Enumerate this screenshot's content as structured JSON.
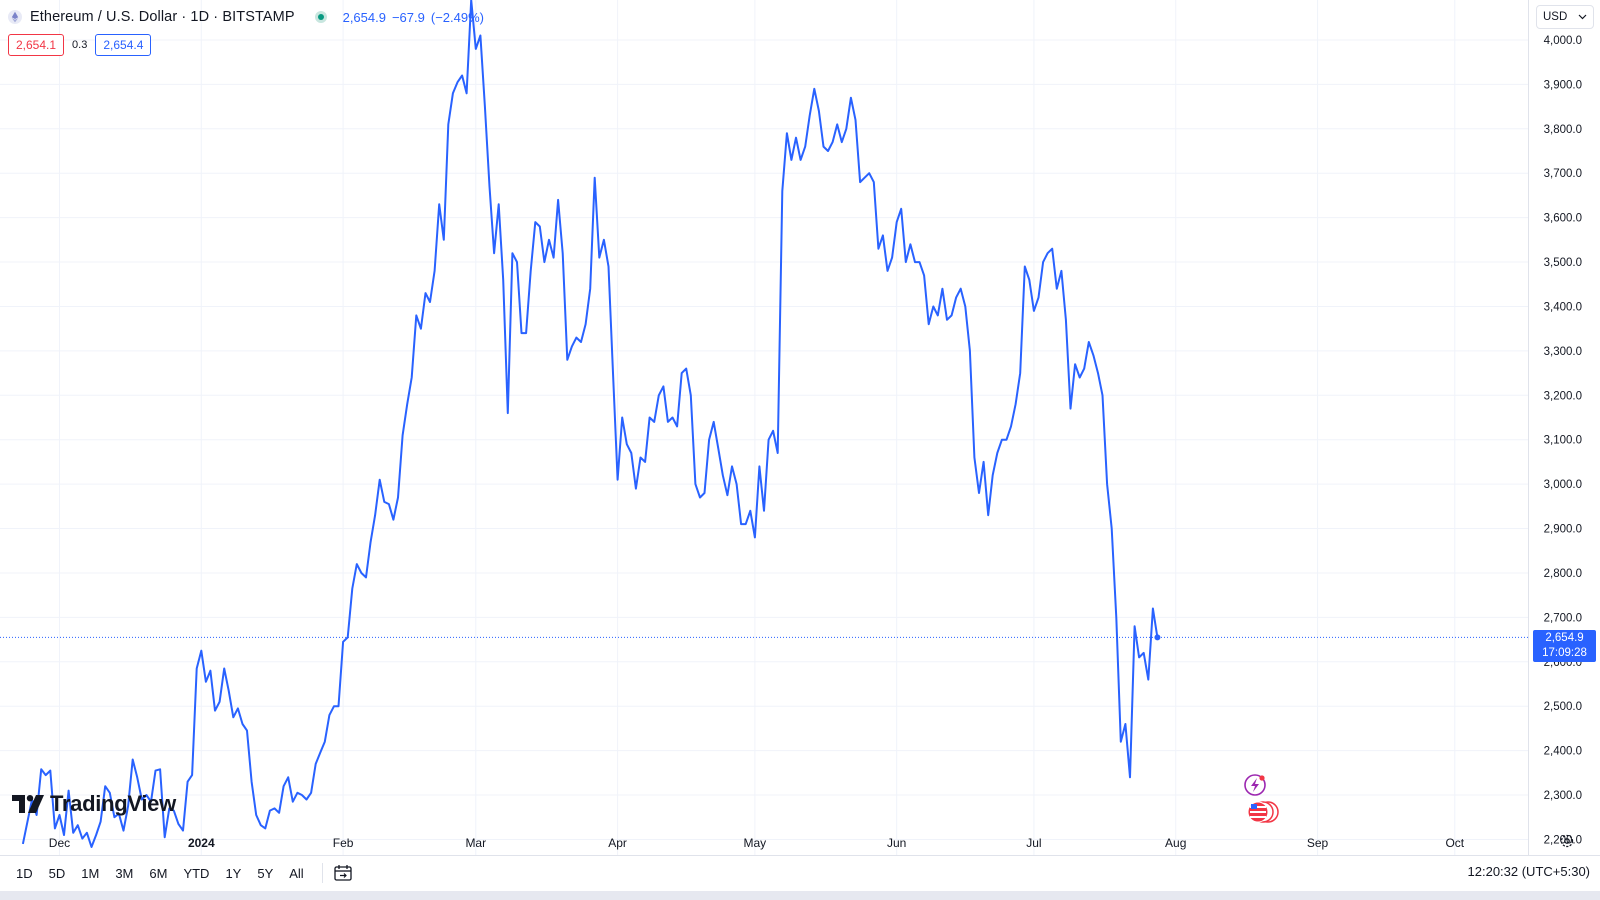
{
  "header": {
    "title": "Ethereum / U.S. Dollar · 1D · BITSTAMP",
    "last": "2,654.9",
    "change": "−67.9",
    "change_pct": "(−2.49%)",
    "bid": "2,654.1",
    "spread": "0.3",
    "ask": "2,654.4"
  },
  "currency_select": {
    "value": "USD"
  },
  "price_tag": {
    "price": "2,654.9",
    "countdown": "17:09:28"
  },
  "branding": {
    "logo_text": "TradingView"
  },
  "toolbar": {
    "ranges": [
      "1D",
      "5D",
      "1M",
      "3M",
      "6M",
      "YTD",
      "1Y",
      "5Y",
      "All"
    ],
    "clock": "12:20:32 (UTC+5:30)"
  },
  "colors": {
    "line": "#2962ff",
    "grid": "#f0f3fa",
    "down": "#f23645",
    "up": "#089981"
  },
  "icons": [
    "ethereum-icon",
    "market-open-icon",
    "calendar-range-icon",
    "settings-gear-icon",
    "flash-event-icon",
    "us-flag-events-icon",
    "tradingview-logo-icon",
    "chevron-down-icon"
  ],
  "chart_data": {
    "type": "line",
    "title": "Ethereum / U.S. Dollar · 1D · BITSTAMP",
    "xlabel": "",
    "ylabel": "",
    "ylim": [
      2165,
      4090
    ],
    "xlim": [
      "2023-11-18",
      "2024-10-17"
    ],
    "y_ticks": [
      2200,
      2300,
      2400,
      2500,
      2600,
      2700,
      2800,
      2900,
      3000,
      3100,
      3200,
      3300,
      3400,
      3500,
      3600,
      3700,
      3800,
      3900,
      4000
    ],
    "y_tick_labels": [
      "2,200.0",
      "2,300.0",
      "2,400.0",
      "2,500.0",
      "2,600.0",
      "2,700.0",
      "2,800.0",
      "2,900.0",
      "3,000.0",
      "3,100.0",
      "3,200.0",
      "3,300.0",
      "3,400.0",
      "3,500.0",
      "3,600.0",
      "3,700.0",
      "3,800.0",
      "3,900.0",
      "4,000.0"
    ],
    "x_ticks": [
      {
        "label": "Dec",
        "date": "2023-12-01"
      },
      {
        "label": "2024",
        "date": "2024-01-01"
      },
      {
        "label": "Feb",
        "date": "2024-02-01"
      },
      {
        "label": "Mar",
        "date": "2024-03-01"
      },
      {
        "label": "Apr",
        "date": "2024-04-01"
      },
      {
        "label": "May",
        "date": "2024-05-01"
      },
      {
        "label": "Jun",
        "date": "2024-06-01"
      },
      {
        "label": "Jul",
        "date": "2024-07-01"
      },
      {
        "label": "Aug",
        "date": "2024-08-01"
      },
      {
        "label": "Sep",
        "date": "2024-09-01"
      },
      {
        "label": "Oct",
        "date": "2024-10-01"
      }
    ],
    "last_price": 2654.9,
    "grid": true,
    "series": [
      {
        "values": [
          [
            "2023-11-23",
            2190
          ],
          [
            "2023-11-25",
            2290
          ],
          [
            "2023-11-26",
            2255
          ],
          [
            "2023-11-27",
            2358
          ],
          [
            "2023-11-28",
            2345
          ],
          [
            "2023-11-29",
            2355
          ],
          [
            "2023-11-30",
            2225
          ],
          [
            "2023-12-01",
            2255
          ],
          [
            "2023-12-02",
            2210
          ],
          [
            "2023-12-03",
            2310
          ],
          [
            "2023-12-04",
            2215
          ],
          [
            "2023-12-05",
            2232
          ],
          [
            "2023-12-06",
            2202
          ],
          [
            "2023-12-07",
            2215
          ],
          [
            "2023-12-08",
            2183
          ],
          [
            "2023-12-09",
            2210
          ],
          [
            "2023-12-10",
            2240
          ],
          [
            "2023-12-11",
            2320
          ],
          [
            "2023-12-12",
            2305
          ],
          [
            "2023-12-13",
            2250
          ],
          [
            "2023-12-14",
            2258
          ],
          [
            "2023-12-15",
            2220
          ],
          [
            "2023-12-16",
            2275
          ],
          [
            "2023-12-17",
            2380
          ],
          [
            "2023-12-18",
            2340
          ],
          [
            "2023-12-19",
            2290
          ],
          [
            "2023-12-20",
            2300
          ],
          [
            "2023-12-21",
            2285
          ],
          [
            "2023-12-22",
            2355
          ],
          [
            "2023-12-23",
            2358
          ],
          [
            "2023-12-24",
            2205
          ],
          [
            "2023-12-25",
            2270
          ],
          [
            "2023-12-26",
            2265
          ],
          [
            "2023-12-27",
            2235
          ],
          [
            "2023-12-28",
            2220
          ],
          [
            "2023-12-29",
            2330
          ],
          [
            "2023-12-30",
            2345
          ],
          [
            "2023-12-31",
            2585
          ],
          [
            "2024-01-01",
            2625
          ],
          [
            "2024-01-02",
            2555
          ],
          [
            "2024-01-03",
            2580
          ],
          [
            "2024-01-04",
            2490
          ],
          [
            "2024-01-05",
            2510
          ],
          [
            "2024-01-06",
            2585
          ],
          [
            "2024-01-07",
            2535
          ],
          [
            "2024-01-08",
            2475
          ],
          [
            "2024-01-09",
            2495
          ],
          [
            "2024-01-10",
            2460
          ],
          [
            "2024-01-11",
            2445
          ],
          [
            "2024-01-12",
            2330
          ],
          [
            "2024-01-13",
            2255
          ],
          [
            "2024-01-14",
            2232
          ],
          [
            "2024-01-15",
            2225
          ],
          [
            "2024-01-16",
            2265
          ],
          [
            "2024-01-17",
            2270
          ],
          [
            "2024-01-18",
            2260
          ],
          [
            "2024-01-19",
            2320
          ],
          [
            "2024-01-20",
            2340
          ],
          [
            "2024-01-21",
            2285
          ],
          [
            "2024-01-22",
            2305
          ],
          [
            "2024-01-23",
            2300
          ],
          [
            "2024-01-24",
            2290
          ],
          [
            "2024-01-25",
            2305
          ],
          [
            "2024-01-26",
            2370
          ],
          [
            "2024-01-27",
            2395
          ],
          [
            "2024-01-28",
            2420
          ],
          [
            "2024-01-29",
            2480
          ],
          [
            "2024-01-30",
            2500
          ],
          [
            "2024-01-31",
            2500
          ],
          [
            "2024-02-01",
            2645
          ],
          [
            "2024-02-02",
            2655
          ],
          [
            "2024-02-03",
            2765
          ],
          [
            "2024-02-04",
            2820
          ],
          [
            "2024-02-05",
            2800
          ],
          [
            "2024-02-06",
            2790
          ],
          [
            "2024-02-07",
            2870
          ],
          [
            "2024-02-08",
            2930
          ],
          [
            "2024-02-09",
            3010
          ],
          [
            "2024-02-10",
            2960
          ],
          [
            "2024-02-11",
            2955
          ],
          [
            "2024-02-12",
            2920
          ],
          [
            "2024-02-13",
            2970
          ],
          [
            "2024-02-14",
            3110
          ],
          [
            "2024-02-15",
            3180
          ],
          [
            "2024-02-16",
            3240
          ],
          [
            "2024-02-17",
            3380
          ],
          [
            "2024-02-18",
            3350
          ],
          [
            "2024-02-19",
            3430
          ],
          [
            "2024-02-20",
            3410
          ],
          [
            "2024-02-21",
            3480
          ],
          [
            "2024-02-22",
            3630
          ],
          [
            "2024-02-23",
            3550
          ],
          [
            "2024-02-24",
            3810
          ],
          [
            "2024-02-25",
            3880
          ],
          [
            "2024-02-26",
            3905
          ],
          [
            "2024-02-27",
            3920
          ],
          [
            "2024-02-28",
            3880
          ],
          [
            "2024-02-29",
            4090
          ],
          [
            "2024-03-01",
            3980
          ],
          [
            "2024-03-02",
            4010
          ],
          [
            "2024-03-03",
            3850
          ],
          [
            "2024-03-04",
            3670
          ],
          [
            "2024-03-05",
            3520
          ],
          [
            "2024-03-06",
            3630
          ],
          [
            "2024-03-07",
            3460
          ],
          [
            "2024-03-08",
            3160
          ],
          [
            "2024-03-09",
            3520
          ],
          [
            "2024-03-10",
            3500
          ],
          [
            "2024-03-11",
            3340
          ],
          [
            "2024-03-12",
            3340
          ],
          [
            "2024-03-13",
            3480
          ],
          [
            "2024-03-14",
            3590
          ],
          [
            "2024-03-15",
            3580
          ],
          [
            "2024-03-16",
            3500
          ],
          [
            "2024-03-17",
            3550
          ],
          [
            "2024-03-18",
            3510
          ],
          [
            "2024-03-19",
            3640
          ],
          [
            "2024-03-20",
            3520
          ],
          [
            "2024-03-21",
            3280
          ],
          [
            "2024-03-22",
            3310
          ],
          [
            "2024-03-23",
            3330
          ],
          [
            "2024-03-24",
            3320
          ],
          [
            "2024-03-25",
            3360
          ],
          [
            "2024-03-26",
            3440
          ],
          [
            "2024-03-27",
            3690
          ],
          [
            "2024-03-28",
            3510
          ],
          [
            "2024-03-29",
            3550
          ],
          [
            "2024-03-30",
            3490
          ],
          [
            "2024-03-31",
            3250
          ],
          [
            "2024-04-01",
            3010
          ],
          [
            "2024-04-02",
            3150
          ],
          [
            "2024-04-03",
            3090
          ],
          [
            "2024-04-04",
            3070
          ],
          [
            "2024-04-05",
            2990
          ],
          [
            "2024-04-06",
            3060
          ],
          [
            "2024-04-07",
            3050
          ],
          [
            "2024-04-08",
            3150
          ],
          [
            "2024-04-09",
            3140
          ],
          [
            "2024-04-10",
            3200
          ],
          [
            "2024-04-11",
            3220
          ],
          [
            "2024-04-12",
            3140
          ],
          [
            "2024-04-13",
            3150
          ],
          [
            "2024-04-14",
            3130
          ],
          [
            "2024-04-15",
            3250
          ],
          [
            "2024-04-16",
            3260
          ],
          [
            "2024-04-17",
            3200
          ],
          [
            "2024-04-18",
            3000
          ],
          [
            "2024-04-19",
            2970
          ],
          [
            "2024-04-20",
            2980
          ],
          [
            "2024-04-21",
            3100
          ],
          [
            "2024-04-22",
            3140
          ],
          [
            "2024-04-23",
            3080
          ],
          [
            "2024-04-24",
            3020
          ],
          [
            "2024-04-25",
            2975
          ],
          [
            "2024-04-26",
            3040
          ],
          [
            "2024-04-27",
            3000
          ],
          [
            "2024-04-28",
            2910
          ],
          [
            "2024-04-29",
            2910
          ],
          [
            "2024-04-30",
            2940
          ],
          [
            "2024-05-01",
            2880
          ],
          [
            "2024-05-02",
            3040
          ],
          [
            "2024-05-03",
            2940
          ],
          [
            "2024-05-04",
            3100
          ],
          [
            "2024-05-05",
            3120
          ],
          [
            "2024-05-06",
            3070
          ],
          [
            "2024-05-07",
            3660
          ],
          [
            "2024-05-08",
            3790
          ],
          [
            "2024-05-09",
            3730
          ],
          [
            "2024-05-10",
            3780
          ],
          [
            "2024-05-11",
            3730
          ],
          [
            "2024-05-12",
            3760
          ],
          [
            "2024-05-13",
            3830
          ],
          [
            "2024-05-14",
            3890
          ],
          [
            "2024-05-15",
            3840
          ],
          [
            "2024-05-16",
            3760
          ],
          [
            "2024-05-17",
            3750
          ],
          [
            "2024-05-18",
            3770
          ],
          [
            "2024-05-19",
            3810
          ],
          [
            "2024-05-20",
            3770
          ],
          [
            "2024-05-21",
            3800
          ],
          [
            "2024-05-22",
            3870
          ],
          [
            "2024-05-23",
            3820
          ],
          [
            "2024-05-24",
            3680
          ],
          [
            "2024-05-25",
            3690
          ],
          [
            "2024-05-26",
            3700
          ],
          [
            "2024-05-27",
            3680
          ],
          [
            "2024-05-28",
            3530
          ],
          [
            "2024-05-29",
            3560
          ],
          [
            "2024-05-30",
            3480
          ],
          [
            "2024-05-31",
            3510
          ],
          [
            "2024-06-01",
            3590
          ],
          [
            "2024-06-02",
            3620
          ],
          [
            "2024-06-03",
            3500
          ],
          [
            "2024-06-04",
            3540
          ],
          [
            "2024-06-05",
            3500
          ],
          [
            "2024-06-06",
            3500
          ],
          [
            "2024-06-07",
            3470
          ],
          [
            "2024-06-08",
            3360
          ],
          [
            "2024-06-09",
            3400
          ],
          [
            "2024-06-10",
            3380
          ],
          [
            "2024-06-11",
            3440
          ],
          [
            "2024-06-12",
            3370
          ],
          [
            "2024-06-13",
            3380
          ],
          [
            "2024-06-14",
            3420
          ],
          [
            "2024-06-15",
            3440
          ],
          [
            "2024-06-16",
            3400
          ],
          [
            "2024-06-17",
            3300
          ],
          [
            "2024-06-18",
            3060
          ],
          [
            "2024-06-19",
            2980
          ],
          [
            "2024-06-20",
            3050
          ],
          [
            "2024-06-21",
            2930
          ],
          [
            "2024-06-22",
            3020
          ],
          [
            "2024-06-23",
            3070
          ],
          [
            "2024-06-24",
            3100
          ],
          [
            "2024-06-25",
            3100
          ],
          [
            "2024-06-26",
            3130
          ],
          [
            "2024-06-27",
            3180
          ],
          [
            "2024-06-28",
            3250
          ],
          [
            "2024-06-29",
            3490
          ],
          [
            "2024-06-30",
            3460
          ],
          [
            "2024-07-01",
            3390
          ],
          [
            "2024-07-02",
            3420
          ],
          [
            "2024-07-03",
            3500
          ],
          [
            "2024-07-04",
            3520
          ],
          [
            "2024-07-05",
            3530
          ],
          [
            "2024-07-06",
            3440
          ],
          [
            "2024-07-07",
            3480
          ],
          [
            "2024-07-08",
            3370
          ],
          [
            "2024-07-09",
            3170
          ],
          [
            "2024-07-10",
            3270
          ],
          [
            "2024-07-11",
            3240
          ],
          [
            "2024-07-12",
            3260
          ],
          [
            "2024-07-13",
            3320
          ],
          [
            "2024-07-14",
            3290
          ],
          [
            "2024-07-15",
            3250
          ],
          [
            "2024-07-16",
            3200
          ],
          [
            "2024-07-17",
            3000
          ],
          [
            "2024-07-18",
            2900
          ],
          [
            "2024-07-19",
            2700
          ],
          [
            "2024-07-20",
            2420
          ],
          [
            "2024-07-21",
            2460
          ],
          [
            "2024-07-22",
            2340
          ],
          [
            "2024-07-23",
            2680
          ],
          [
            "2024-07-24",
            2610
          ],
          [
            "2024-07-25",
            2620
          ],
          [
            "2024-07-26",
            2560
          ],
          [
            "2024-07-27",
            2720
          ],
          [
            "2024-07-28",
            2655
          ]
        ]
      }
    ]
  }
}
